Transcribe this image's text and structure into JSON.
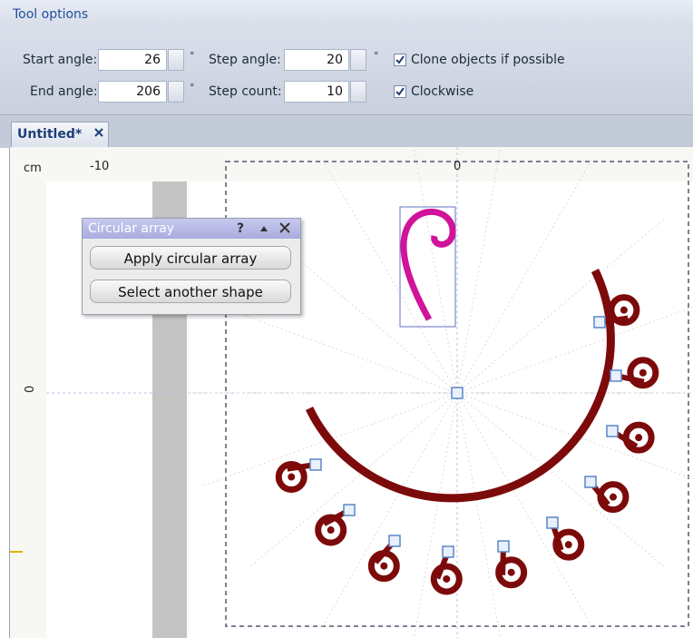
{
  "toolbar": {
    "title": "Tool options",
    "start_angle": {
      "label": "Start angle:",
      "value": "26",
      "unit": "°"
    },
    "step_angle": {
      "label": "Step angle:",
      "value": "20",
      "unit": "°"
    },
    "end_angle": {
      "label": "End angle:",
      "value": "206",
      "unit": "°"
    },
    "step_count": {
      "label": "Step count:",
      "value": "10"
    },
    "clone": "Clone objects if possible",
    "clockwise": "Clockwise"
  },
  "tab": {
    "title": "Untitled*"
  },
  "ruler": {
    "unit": "cm",
    "top_labels": [
      "-10",
      "0"
    ],
    "left_label": "0"
  },
  "panel": {
    "title": "Circular array",
    "help": "?",
    "buttons": [
      "Apply circular array",
      "Select another shape"
    ]
  }
}
